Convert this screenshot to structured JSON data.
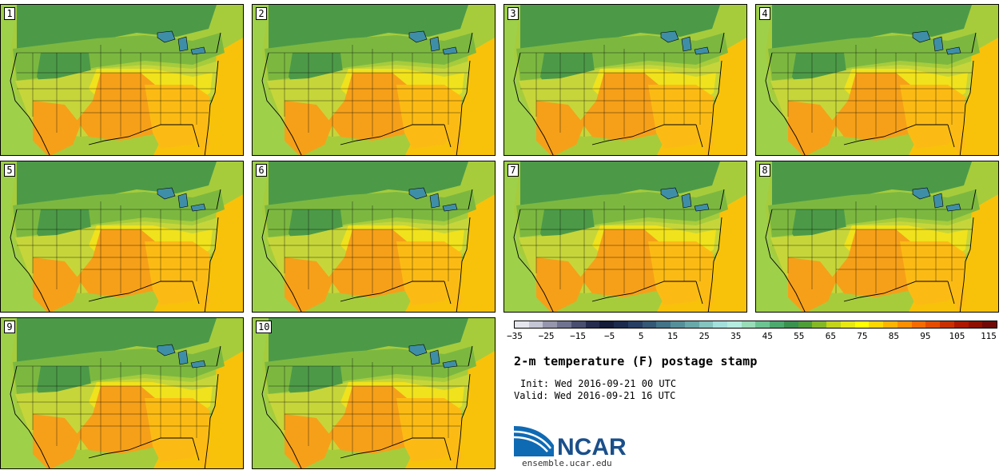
{
  "title": "2-m temperature (F) postage stamp",
  "init_label": "Init: Wed 2016-09-21 00 UTC",
  "valid_label": "Valid: Wed 2016-09-21 16 UTC",
  "logo_text": "NCAR",
  "site": "ensemble.ucar.edu",
  "members": [
    "1",
    "2",
    "3",
    "4",
    "5",
    "6",
    "7",
    "8",
    "9",
    "10"
  ],
  "colorbar": {
    "tick_labels": [
      "−35",
      "−25",
      "−15",
      "−5",
      "5",
      "15",
      "25",
      "35",
      "45",
      "55",
      "65",
      "75",
      "85",
      "95",
      "105",
      "115"
    ],
    "colors": [
      "#e6e6ee",
      "#c4c6d4",
      "#9697ae",
      "#707390",
      "#4a4f70",
      "#262c4e",
      "#141c3a",
      "#1c2a4e",
      "#283f64",
      "#345876",
      "#437488",
      "#55909a",
      "#69a9aa",
      "#86c4c0",
      "#a3e0dc",
      "#b4ece0",
      "#98dcb8",
      "#6cc493",
      "#4caa6e",
      "#3a9250",
      "#4e9e38",
      "#84b826",
      "#c3d41a",
      "#e8e812",
      "#ffff00",
      "#ffd700",
      "#fdb400",
      "#fb8f00",
      "#f46b00",
      "#e44d00",
      "#c93000",
      "#ad1800",
      "#8e1000",
      "#700a08"
    ]
  },
  "map_colors": {
    "green_dark": "#4c9a48",
    "green": "#7cb840",
    "yellow_green": "#c6d63a",
    "yellow": "#f0e21c",
    "orange_light": "#fcbb14",
    "orange": "#f6a019",
    "gulf": "#f8c20a",
    "ocean_north": "#a6cc3c",
    "pacific": "#9ed04a"
  }
}
